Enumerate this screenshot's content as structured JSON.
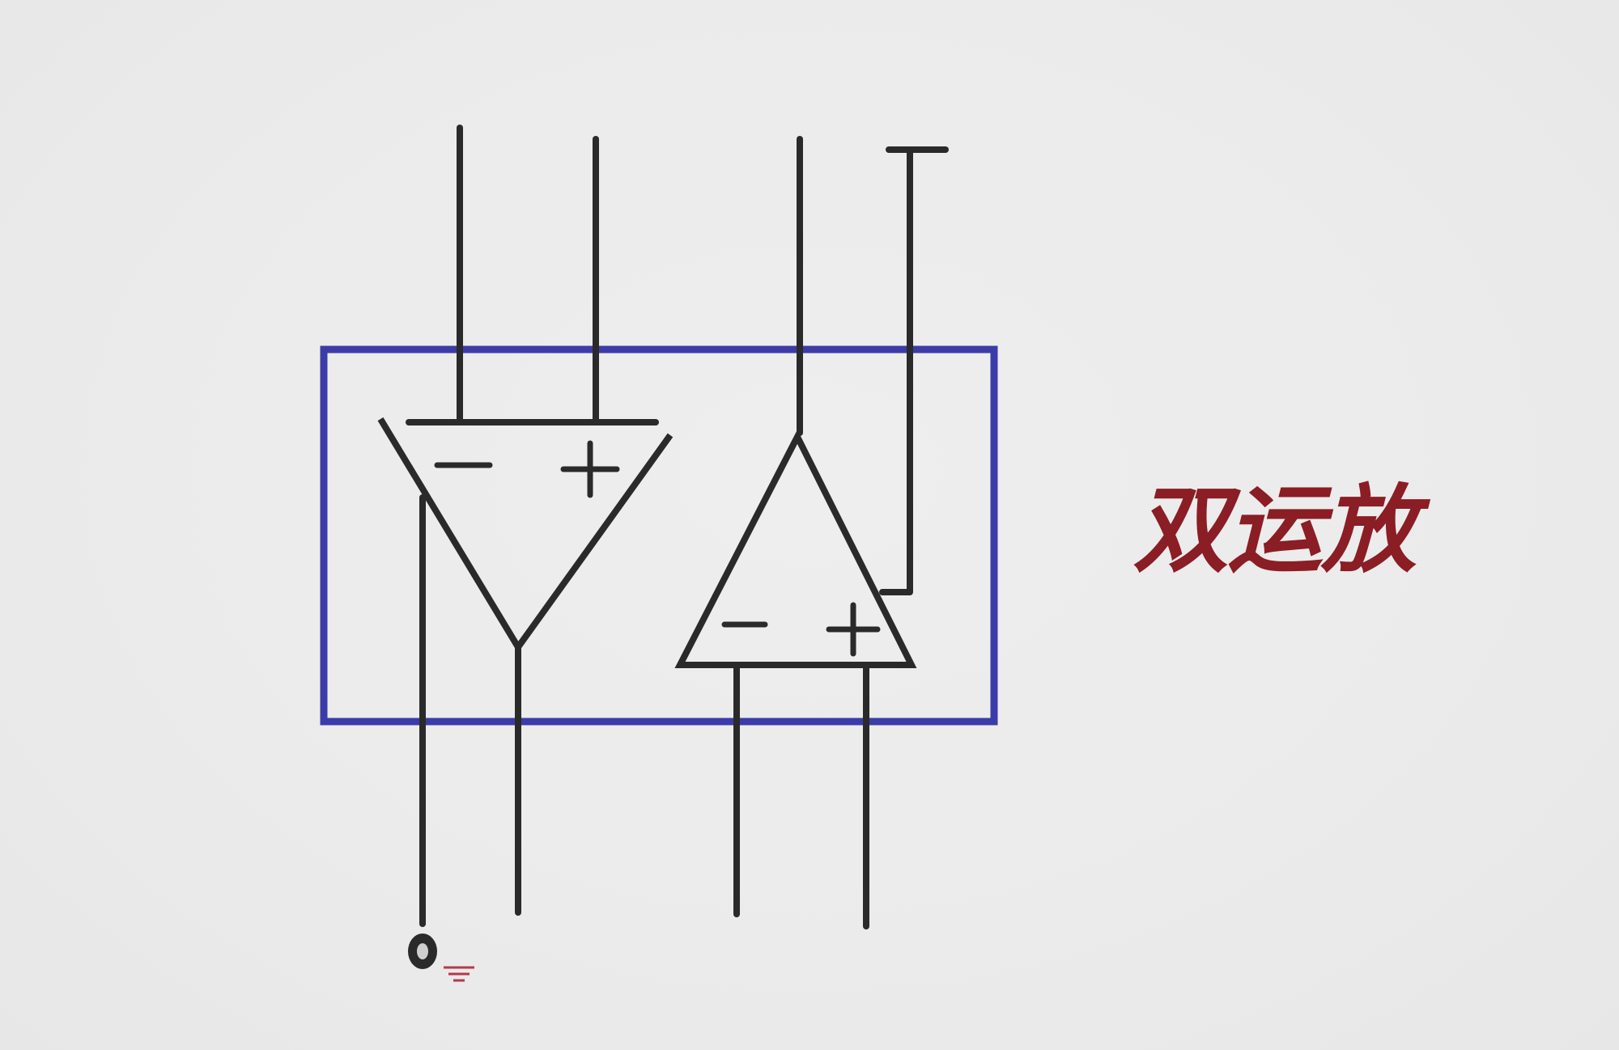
{
  "diagram": {
    "label": "双运放",
    "colors": {
      "background": "#ebebeb",
      "wire": "#2a2a2a",
      "chip_outline": "#3c3ca8",
      "label": "#8b1d25"
    },
    "amplifiers": [
      {
        "name": "op-amp-1",
        "orientation": "down",
        "inputs": [
          "−",
          "+"
        ]
      },
      {
        "name": "op-amp-2",
        "orientation": "up",
        "inputs": [
          "−",
          "+"
        ]
      }
    ],
    "icons": {
      "ground_marker": "ground-icon"
    }
  }
}
